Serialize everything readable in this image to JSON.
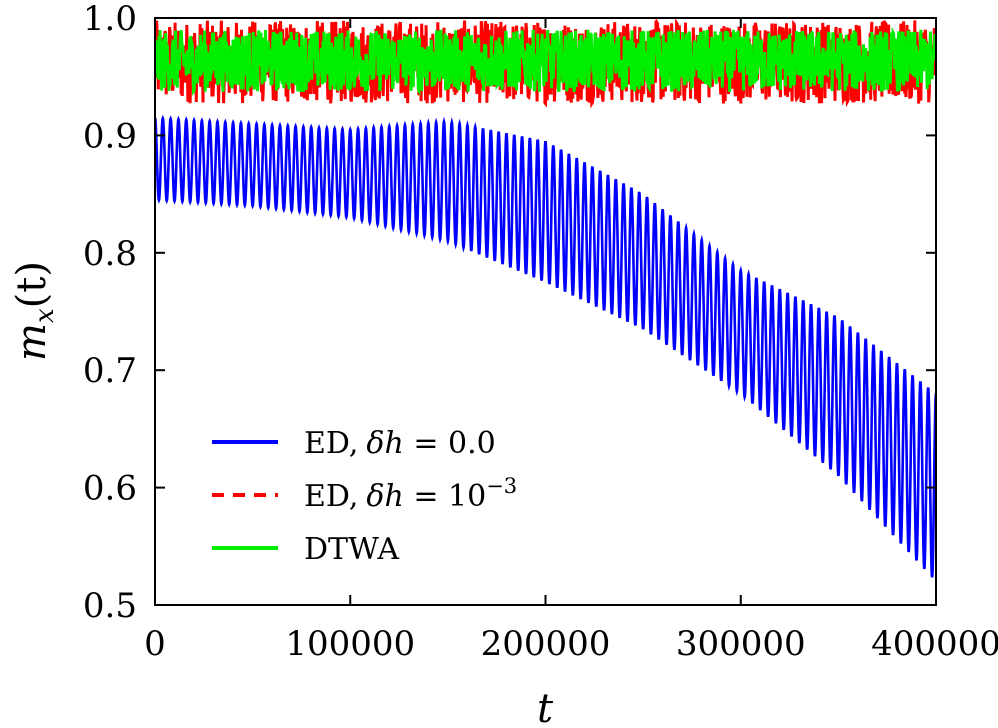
{
  "chart_data": {
    "type": "line",
    "xlabel": "t",
    "ylabel_main": "m",
    "ylabel_sub": "x",
    "ylabel_tail": "(t)",
    "xlim": [
      0,
      400000
    ],
    "ylim": [
      0.5,
      1.0
    ],
    "xticks": [
      0,
      100000,
      200000,
      300000,
      400000
    ],
    "xtick_labels": [
      "0",
      "100000",
      "200000",
      "300000",
      "400000"
    ],
    "yticks": [
      0.5,
      0.6,
      0.7,
      0.8,
      0.9,
      1.0
    ],
    "ytick_labels": [
      "0.5",
      "0.6",
      "0.7",
      "0.8",
      "0.9",
      "1.0"
    ],
    "grid": false,
    "legend_position": "lower-left",
    "series": [
      {
        "name": "ED, δh = 0.0",
        "legend_parts": [
          "ED,",
          "δh",
          " = 0.0"
        ],
        "color": "#0000ff",
        "style": "solid",
        "oscillation_cycles": 100,
        "upper_envelope": {
          "x": [
            0,
            100000,
            150000,
            200000,
            250000,
            300000,
            350000,
            400000
          ],
          "y": [
            0.915,
            0.905,
            0.912,
            0.895,
            0.85,
            0.785,
            0.745,
            0.68
          ]
        },
        "lower_envelope": {
          "x": [
            0,
            50000,
            100000,
            150000,
            200000,
            250000,
            300000,
            350000,
            400000
          ],
          "y": [
            0.845,
            0.84,
            0.83,
            0.81,
            0.775,
            0.735,
            0.68,
            0.61,
            0.52
          ]
        }
      },
      {
        "name": "ED, δh = 10^-3",
        "legend_parts": [
          "ED,",
          "δh",
          " = 10",
          "−3"
        ],
        "color": "#ff0000",
        "style": "dashed",
        "band": [
          0.927,
          0.998
        ]
      },
      {
        "name": "DTWA",
        "legend_parts": [
          "DTWA"
        ],
        "color": "#00ee00",
        "style": "solid",
        "band": [
          0.937,
          0.99
        ]
      }
    ]
  }
}
